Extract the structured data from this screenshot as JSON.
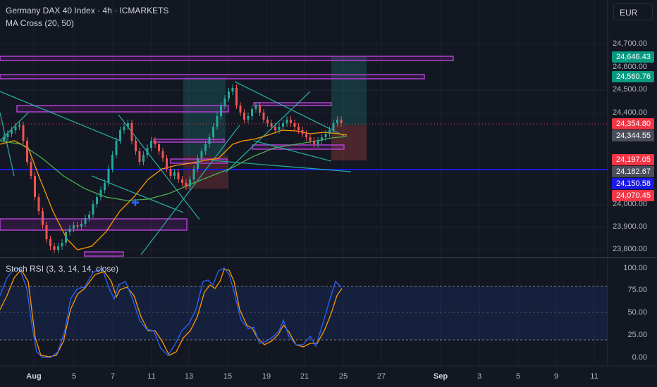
{
  "header": {
    "title": "Germany DAX 40 Index · 4h · ICMARKETS",
    "ma_indicator": "MA Cross (20, 50)",
    "currency": "EUR"
  },
  "price_axis": {
    "labels": [
      "24,700.00",
      "24,600.00",
      "24,500.00",
      "24,400.00",
      "24,000.00",
      "23,900.00",
      "23,800.00"
    ]
  },
  "price_tags": [
    {
      "label": "24,646.43",
      "color": "#089981"
    },
    {
      "label": "24,560.76",
      "color": "#089981"
    },
    {
      "label": "24,354.80",
      "color": "#f23645"
    },
    {
      "label": "24,344.55",
      "color": "#4a4e5a"
    },
    {
      "label": "24,197.05",
      "color": "#f23645"
    },
    {
      "label": "24,182.67",
      "color": "#4a4e5a"
    },
    {
      "label": "24,150.58",
      "color": "#1a1ae6"
    },
    {
      "label": "24,070.45",
      "color": "#f23645"
    }
  ],
  "stoch_rsi": {
    "label": "Stoch RSI (3, 3, 14, 14, close)",
    "axis_labels": [
      "100.00",
      "75.00",
      "50.00",
      "25.00",
      "0.00"
    ],
    "k_color": "#2962ff",
    "d_color": "#ff9800"
  },
  "time_axis": {
    "labels": [
      {
        "text": "Aug",
        "bold": true
      },
      {
        "text": "5",
        "bold": false
      },
      {
        "text": "7",
        "bold": false
      },
      {
        "text": "11",
        "bold": false
      },
      {
        "text": "13",
        "bold": false
      },
      {
        "text": "15",
        "bold": false
      },
      {
        "text": "19",
        "bold": false
      },
      {
        "text": "21",
        "bold": false
      },
      {
        "text": "25",
        "bold": false
      },
      {
        "text": "27",
        "bold": false
      },
      {
        "text": "Sep",
        "bold": true
      },
      {
        "text": "3",
        "bold": false
      },
      {
        "text": "5",
        "bold": false
      },
      {
        "text": "9",
        "bold": false
      },
      {
        "text": "11",
        "bold": false
      }
    ]
  },
  "colors": {
    "background": "#131722",
    "up_candle": "#26a69a",
    "down_candle": "#ef5350",
    "zone_border": "#9c27b0",
    "trendline": "#26a69a",
    "ma_fast": "#ff9800",
    "ma_slow": "#4caf50"
  }
}
